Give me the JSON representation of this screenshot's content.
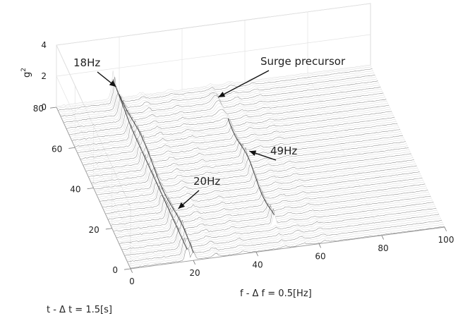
{
  "chart_data": {
    "type": "waterfall-3d",
    "title": "",
    "xlabel": "f -  Δ f = 0.5[Hz]",
    "ylabel": "t -  Δ t = 1.5[s]",
    "zlabel": "g",
    "zlabel_sup": "2",
    "xlim": [
      0,
      100
    ],
    "ylim": [
      0,
      80
    ],
    "zlim": [
      0,
      4
    ],
    "x_ticks": [
      0,
      20,
      40,
      60,
      80,
      100
    ],
    "y_ticks": [
      0,
      20,
      40,
      60,
      80
    ],
    "z_ticks": [
      0,
      2,
      4
    ],
    "grid": true,
    "peaks": [
      {
        "label": "18Hz",
        "f": 18,
        "t": 75,
        "g2": 1.4
      },
      {
        "label": "20Hz",
        "f": 20,
        "t": 18,
        "g2": 0.9
      },
      {
        "label": "49Hz",
        "f": 49,
        "t": 40,
        "g2": 1.1
      },
      {
        "label": "Surge precursor",
        "f": 48,
        "t": 70,
        "g2": 0.6
      }
    ],
    "line_color": "#3a3a3a",
    "background_color": "#ffffff"
  }
}
